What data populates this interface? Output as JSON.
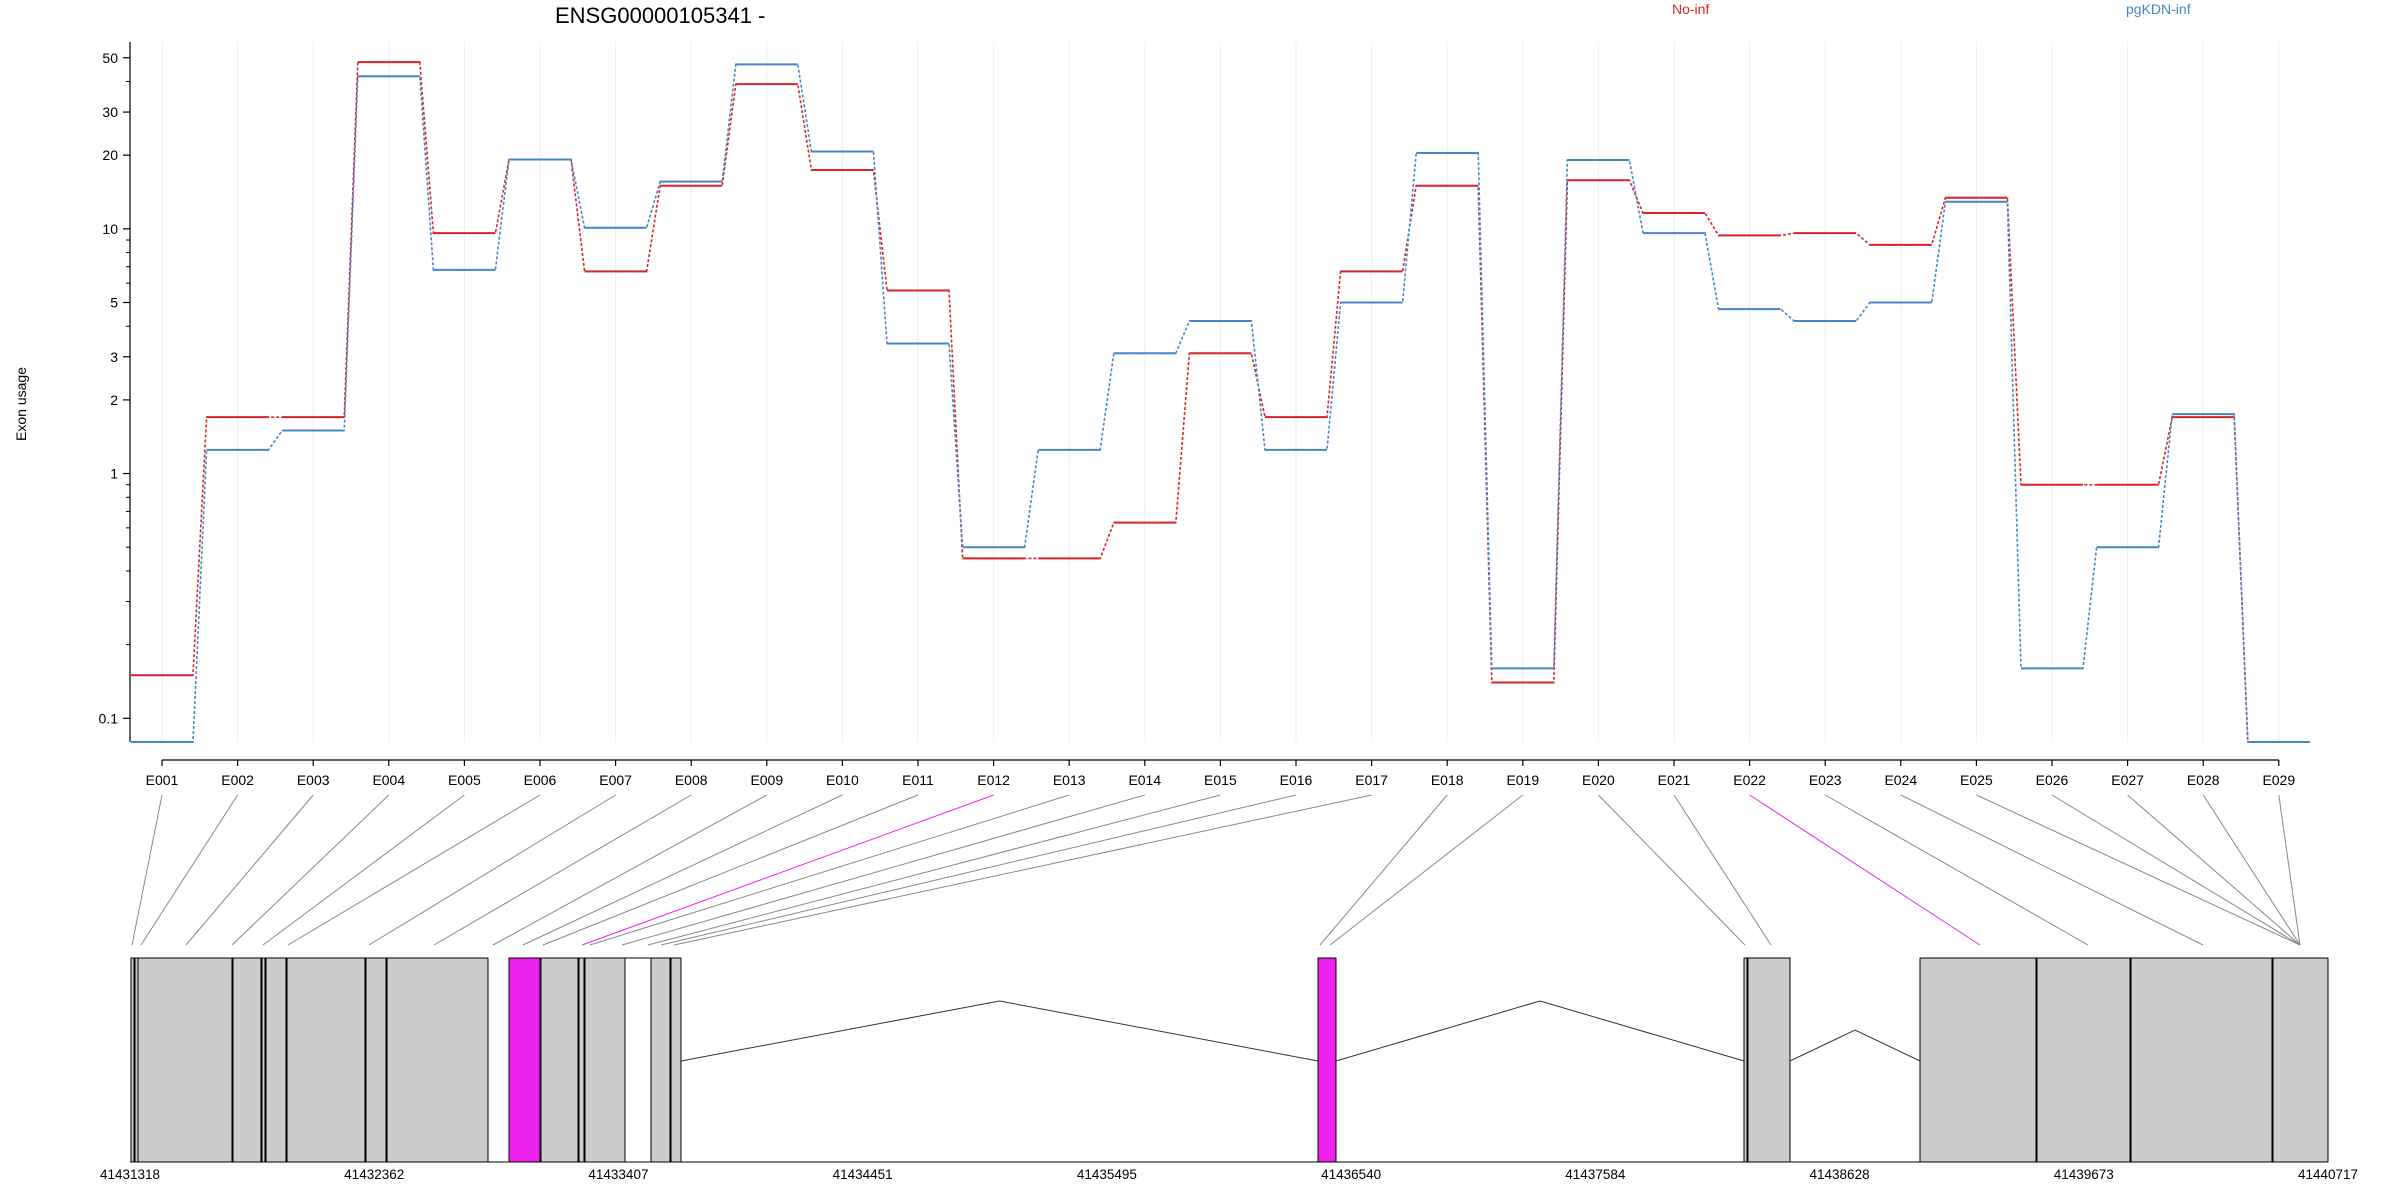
{
  "chart_data": {
    "type": "line",
    "title": "ENSG00000105341 -",
    "ylabel": "Exon usage",
    "yscale": "log",
    "ylim": [
      0.08,
      58
    ],
    "ytick_values": [
      0.1,
      1,
      2,
      3,
      5,
      10,
      20,
      30,
      50
    ],
    "ytick_labels": [
      "0.1",
      "1",
      "2",
      "3",
      "5",
      "10",
      "20",
      "30",
      "50"
    ],
    "categories": [
      "E001",
      "E002",
      "E003",
      "E004",
      "E005",
      "E006",
      "E007",
      "E008",
      "E009",
      "E010",
      "E011",
      "E012",
      "E013",
      "E014",
      "E015",
      "E016",
      "E017",
      "E018",
      "E019",
      "E020",
      "E021",
      "E022",
      "E023",
      "E024",
      "E025",
      "E026",
      "E027",
      "E028",
      "E029"
    ],
    "series": [
      {
        "name": "No-inf",
        "color": "#d62728",
        "values": [
          0.15,
          1.7,
          1.7,
          48,
          9.6,
          19.2,
          6.7,
          15,
          39,
          17.4,
          5.6,
          0.45,
          0.45,
          0.63,
          3.1,
          1.7,
          6.7,
          15,
          0.14,
          15.8,
          11.6,
          9.4,
          9.6,
          8.6,
          13.4,
          0.9,
          0.9,
          1.7,
          0.08
        ]
      },
      {
        "name": "pgKDN-inf",
        "color": "#4a86c5",
        "values": [
          0.08,
          1.25,
          1.5,
          42,
          6.8,
          19.2,
          10.1,
          15.6,
          47,
          20.7,
          3.4,
          0.5,
          1.25,
          3.1,
          4.2,
          1.25,
          5.0,
          20.4,
          0.16,
          19.1,
          9.6,
          4.7,
          4.2,
          5.0,
          12.9,
          0.16,
          0.5,
          1.75,
          0.08
        ]
      }
    ],
    "genome": {
      "coordinate_labels": [
        "41431318",
        "41432362",
        "41433407",
        "41434451",
        "41435495",
        "41436540",
        "41437584",
        "41438628",
        "41439673",
        "41440717"
      ],
      "highlighted_exons": [
        "E012",
        "E022"
      ],
      "highlight_color": "#ee22ee",
      "exon_fill": "#cccccc"
    },
    "grid": true,
    "legend_position": "top"
  }
}
